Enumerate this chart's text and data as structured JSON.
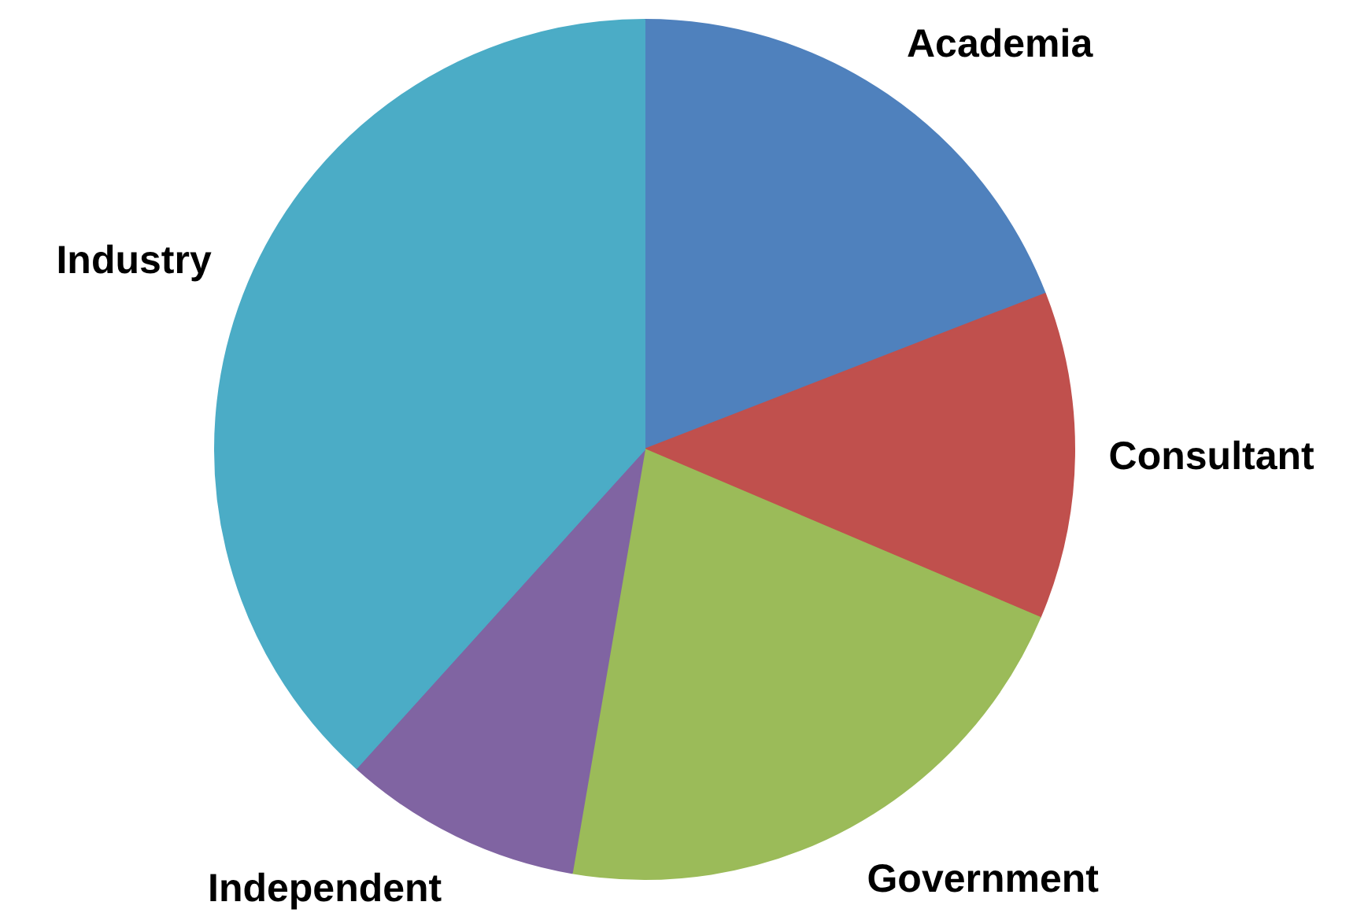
{
  "chart_data": {
    "type": "pie",
    "categories": [
      "Academia",
      "Consultant",
      "Government",
      "Independent",
      "Industry"
    ],
    "values": [
      19.1,
      12.3,
      21.3,
      9.0,
      38.3
    ],
    "colors": [
      "#4f81bd",
      "#c0504d",
      "#9bbb59",
      "#8064a2",
      "#4bacc6"
    ]
  }
}
